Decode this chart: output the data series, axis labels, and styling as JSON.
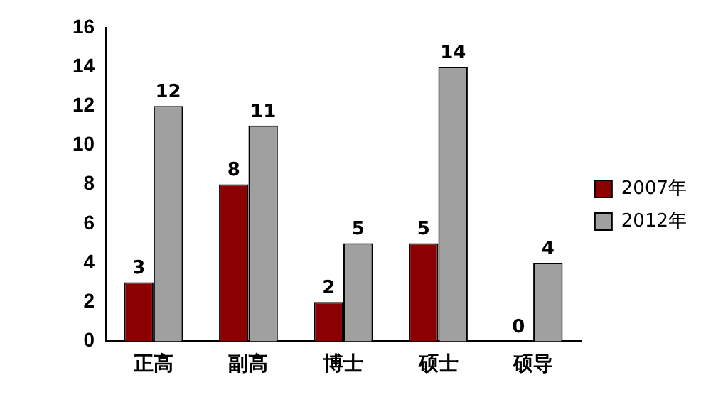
{
  "chart_data": {
    "type": "bar",
    "categories": [
      "正高",
      "副高",
      "博士",
      "硕士",
      "硕导"
    ],
    "series": [
      {
        "name": "2007年",
        "color": "#8b0000",
        "values": [
          3,
          8,
          2,
          5,
          0
        ]
      },
      {
        "name": "2012年",
        "color": "#a0a0a0",
        "values": [
          12,
          11,
          5,
          14,
          4
        ]
      }
    ],
    "ylim": [
      0,
      16
    ],
    "yticks": [
      0,
      2,
      4,
      6,
      8,
      10,
      12,
      14,
      16
    ],
    "grid": false,
    "legend": "right",
    "data_labels": true
  }
}
